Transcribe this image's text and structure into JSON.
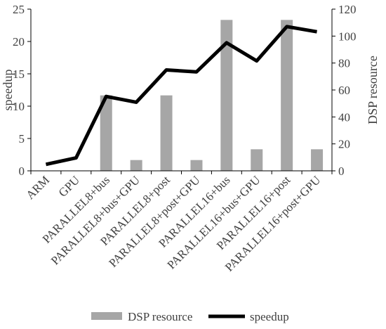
{
  "chart_data": {
    "type": "bar-line",
    "title": "",
    "categories": [
      "ARM",
      "GPU",
      "PARALLEL8+bus",
      "PARALLEL8+bus+GPU",
      "PARALLEL8+post",
      "PARALLEL8+post+GPU",
      "PARALLEL16+bus",
      "PARALLEL16+bus+GPU",
      "PARALLEL16+post",
      "PARALLEL16+post+GPU"
    ],
    "series": [
      {
        "name": "DSP resource",
        "type": "bar",
        "axis": "right",
        "color": "#a6a6a6",
        "values": [
          0,
          0,
          56,
          8,
          56,
          8,
          112,
          16,
          112,
          16
        ]
      },
      {
        "name": "speedup",
        "type": "line",
        "axis": "left",
        "color": "#000000",
        "values": [
          1.0,
          2.0,
          11.5,
          10.6,
          15.6,
          15.3,
          19.8,
          17.0,
          22.3,
          21.5
        ]
      }
    ],
    "y_left": {
      "label": "speedup",
      "ylim": [
        0,
        25
      ],
      "ticks": [
        0,
        5,
        10,
        15,
        20,
        25
      ]
    },
    "y_right": {
      "label": "DSP resource",
      "ylim": [
        0,
        120
      ],
      "ticks": [
        0,
        20,
        40,
        60,
        80,
        100,
        120
      ]
    },
    "xlabel": "",
    "grid": false,
    "legend_position": "bottom"
  }
}
